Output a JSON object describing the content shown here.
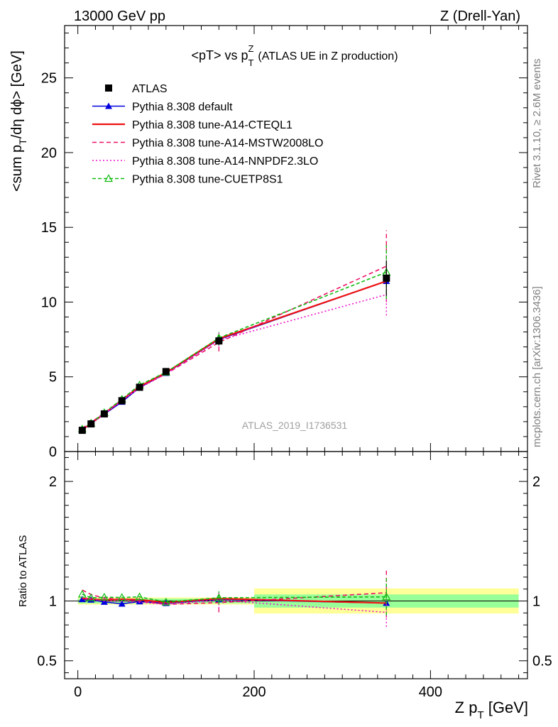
{
  "header": {
    "left": "13000 GeV pp",
    "right": "Z (Drell-Yan)"
  },
  "side_labels": {
    "rivet": "Rivet 3.1.10, ≥ 2.6M events",
    "mcplots": "mcplots.cern.ch [arXiv:1306.3436]"
  },
  "watermark": "ATLAS_2019_I1736531",
  "chart_data": {
    "type": "line",
    "title_main": "<pT> vs p",
    "title_sup": "Z",
    "title_sub": "T",
    "title_suffix": "(ATLAS UE in Z production)",
    "ylabel_main": "<sum p",
    "ylabel_sub": "T",
    "ylabel_rest": "/dη dϕ> [GeV]",
    "ratio_ylabel": "Ratio to ATLAS",
    "xlabel_main": "Z p",
    "xlabel_sub": "T",
    "xlabel_rest": " [GeV]",
    "xlim": [
      -15,
      510
    ],
    "ylim": [
      0,
      28.5
    ],
    "ratio_ylim": [
      0.35,
      2.25
    ],
    "xticks": [
      0,
      200,
      400
    ],
    "yticks": [
      0,
      5,
      10,
      15,
      20,
      25
    ],
    "ratio_yticks": [
      0.5,
      1,
      2
    ],
    "legend_position": "top-left",
    "x": [
      5,
      15,
      30,
      50,
      70,
      100,
      160,
      350
    ],
    "data": {
      "name": "ATLAS",
      "color": "#000000",
      "values": [
        1.42,
        1.85,
        2.52,
        3.4,
        4.3,
        5.35,
        7.4,
        11.6
      ],
      "errors": [
        0.06,
        0.08,
        0.1,
        0.12,
        0.15,
        0.18,
        0.3,
        1.2
      ]
    },
    "ratio_bands": [
      {
        "x0": 0,
        "x1": 200,
        "inner": 0.02,
        "outer": 0.03
      },
      {
        "x0": 200,
        "x1": 500,
        "inner": 0.055,
        "outer": 0.105
      }
    ],
    "series": [
      {
        "name": "Pythia 8.308 default",
        "color": "#0000dd",
        "dash": "",
        "marker": "triangle-filled",
        "values": [
          1.44,
          1.87,
          2.5,
          3.32,
          4.28,
          5.25,
          7.5,
          11.4
        ]
      },
      {
        "name": "Pythia 8.308 tune-A14-CTEQL1",
        "color": "#ee1111",
        "dash": "",
        "marker": "",
        "values": [
          1.45,
          1.88,
          2.54,
          3.45,
          4.35,
          5.28,
          7.55,
          11.4
        ]
      },
      {
        "name": "Pythia 8.308 tune-A14-MSTW2008LO",
        "color": "#ee1166",
        "dash": "6,4",
        "marker": "",
        "values": [
          1.55,
          1.95,
          2.58,
          3.45,
          4.3,
          5.2,
          7.3,
          12.4
        ],
        "errors": [
          0,
          0,
          0,
          0,
          0,
          0,
          0.6,
          2.4
        ]
      },
      {
        "name": "Pythia 8.308 tune-A14-NNPDF2.3LO",
        "color": "#ee11cc",
        "dash": "2,3",
        "marker": "",
        "values": [
          1.46,
          1.88,
          2.52,
          3.4,
          4.25,
          5.2,
          7.45,
          10.5
        ],
        "errors": [
          0,
          0,
          0,
          0,
          0,
          0,
          0.5,
          1.4
        ]
      },
      {
        "name": "Pythia 8.308 tune-CUETP8S1",
        "color": "#11bb11",
        "dash": "5,3",
        "marker": "triangle-open",
        "values": [
          1.5,
          1.9,
          2.6,
          3.5,
          4.45,
          5.3,
          7.6,
          12.0
        ],
        "errors": [
          0,
          0,
          0,
          0,
          0,
          0,
          0.4,
          1.8
        ]
      }
    ]
  }
}
